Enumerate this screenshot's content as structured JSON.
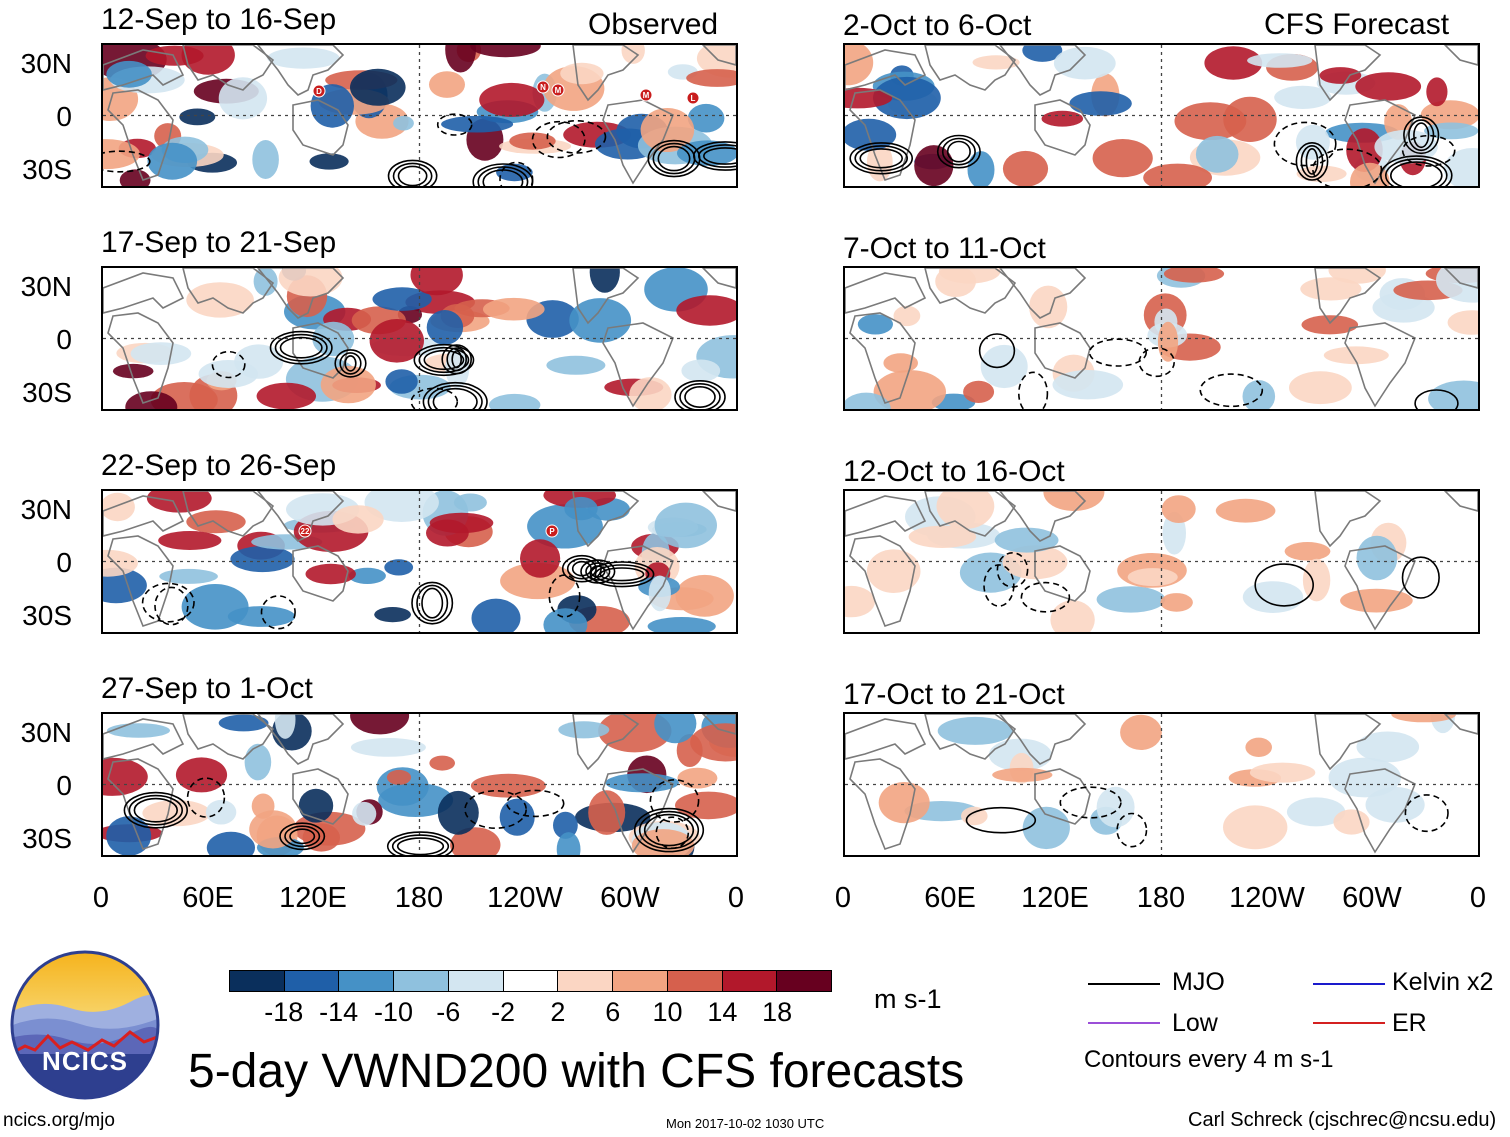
{
  "figure": {
    "title": "5-day VWND200 with CFS forecasts",
    "url": "ncics.org/mjo",
    "timestamp": "Mon 2017-10-02 1030 UTC",
    "author": "Carl Schreck (cjschrec@ncsu.edu)",
    "logo_text": "NCICS"
  },
  "headers": {
    "observed": "Observed",
    "forecast": "CFS Forecast"
  },
  "panels_left": [
    {
      "title": "12-Sep to 16-Sep"
    },
    {
      "title": "17-Sep to 21-Sep"
    },
    {
      "title": "22-Sep to 26-Sep"
    },
    {
      "title": "27-Sep to 1-Oct"
    }
  ],
  "panels_right": [
    {
      "title": "2-Oct to 6-Oct"
    },
    {
      "title": "7-Oct to 11-Oct"
    },
    {
      "title": "12-Oct to 16-Oct"
    },
    {
      "title": "17-Oct to 21-Oct"
    }
  ],
  "lat_labels": [
    "30N",
    "0",
    "30S"
  ],
  "lon_labels": [
    "0",
    "60E",
    "120E",
    "180",
    "120W",
    "60W",
    "0"
  ],
  "colorbar": {
    "unit": "m s-1",
    "ticks": [
      "-18",
      "-14",
      "-10",
      "-6",
      "-2",
      "2",
      "6",
      "10",
      "14",
      "18"
    ],
    "colors": [
      "#0a2f5c",
      "#1f5fa8",
      "#4591c6",
      "#8fc1de",
      "#d3e6f1",
      "#ffffff",
      "#fbd6c3",
      "#f2a482",
      "#d6604d",
      "#b2182b",
      "#67001f"
    ]
  },
  "legend": {
    "mjo": "MJO",
    "kelvin": "Kelvin x2",
    "low": "Low",
    "er": "ER",
    "contours": "Contours every 4 m s-1",
    "colors": {
      "mjo": "#000000",
      "kelvin": "#1a1acc",
      "low": "#9b4fd8",
      "er": "#d42020"
    }
  },
  "storm_markers": [
    {
      "panel": 0,
      "label": "D"
    },
    {
      "panel": 0,
      "label": "N"
    },
    {
      "panel": 0,
      "label": "M"
    },
    {
      "panel": 0,
      "label": "M"
    },
    {
      "panel": 0,
      "label": "L"
    },
    {
      "panel": 2,
      "label": "22"
    },
    {
      "panel": 2,
      "label": "P"
    }
  ]
}
